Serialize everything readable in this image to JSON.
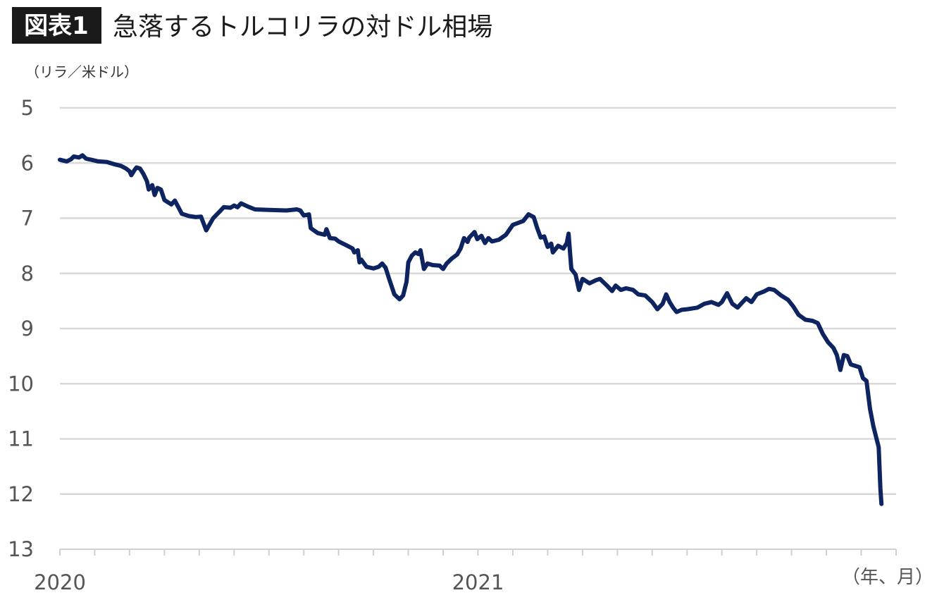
{
  "figure": {
    "badge": "図表1",
    "title": "急落するトルコリラの対ドル相場"
  },
  "chart_data": {
    "type": "line",
    "title": "急落するトルコリラの対ドル相場",
    "ylabel": "（リラ／米ドル）",
    "xlabel": "（年、月）",
    "y_inverted": true,
    "ylim": [
      5,
      13
    ],
    "y_ticks": [
      "5",
      "6",
      "7",
      "8",
      "9",
      "10",
      "11",
      "12",
      "13"
    ],
    "x_tick_labels": [
      {
        "label": "2020",
        "month": 0
      },
      {
        "label": "2021",
        "month": 12
      }
    ],
    "x_minor_ticks_every_month": true,
    "x_range_months": [
      0,
      24
    ],
    "grid": true,
    "line_color": "#0d2460",
    "series": [
      {
        "x_unit": "months since 2020-01",
        "points": [
          [
            0.0,
            5.94
          ],
          [
            0.2,
            5.97
          ],
          [
            0.32,
            5.93
          ],
          [
            0.4,
            5.88
          ],
          [
            0.55,
            5.9
          ],
          [
            0.65,
            5.86
          ],
          [
            0.75,
            5.92
          ],
          [
            0.9,
            5.94
          ],
          [
            1.1,
            5.97
          ],
          [
            1.35,
            5.98
          ],
          [
            1.55,
            6.02
          ],
          [
            1.75,
            6.05
          ],
          [
            1.9,
            6.1
          ],
          [
            2.0,
            6.15
          ],
          [
            2.05,
            6.22
          ],
          [
            2.15,
            6.12
          ],
          [
            2.2,
            6.08
          ],
          [
            2.3,
            6.1
          ],
          [
            2.4,
            6.2
          ],
          [
            2.5,
            6.33
          ],
          [
            2.55,
            6.48
          ],
          [
            2.65,
            6.4
          ],
          [
            2.72,
            6.58
          ],
          [
            2.8,
            6.45
          ],
          [
            2.9,
            6.48
          ],
          [
            3.0,
            6.67
          ],
          [
            3.2,
            6.75
          ],
          [
            3.3,
            6.68
          ],
          [
            3.4,
            6.8
          ],
          [
            3.5,
            6.92
          ],
          [
            3.7,
            6.96
          ],
          [
            3.9,
            6.98
          ],
          [
            4.05,
            6.97
          ],
          [
            4.2,
            7.22
          ],
          [
            4.4,
            7.0
          ],
          [
            4.6,
            6.87
          ],
          [
            4.7,
            6.8
          ],
          [
            4.9,
            6.81
          ],
          [
            5.0,
            6.77
          ],
          [
            5.1,
            6.8
          ],
          [
            5.2,
            6.73
          ],
          [
            5.4,
            6.79
          ],
          [
            5.6,
            6.84
          ],
          [
            6.0,
            6.85
          ],
          [
            6.5,
            6.86
          ],
          [
            6.8,
            6.84
          ],
          [
            6.9,
            6.86
          ],
          [
            7.0,
            6.95
          ],
          [
            7.15,
            6.93
          ],
          [
            7.2,
            7.18
          ],
          [
            7.4,
            7.27
          ],
          [
            7.6,
            7.3
          ],
          [
            7.65,
            7.2
          ],
          [
            7.75,
            7.36
          ],
          [
            7.9,
            7.37
          ],
          [
            8.0,
            7.42
          ],
          [
            8.25,
            7.5
          ],
          [
            8.4,
            7.55
          ],
          [
            8.45,
            7.62
          ],
          [
            8.55,
            7.58
          ],
          [
            8.6,
            7.8
          ],
          [
            8.65,
            7.75
          ],
          [
            8.8,
            7.88
          ],
          [
            9.0,
            7.91
          ],
          [
            9.15,
            7.88
          ],
          [
            9.25,
            7.82
          ],
          [
            9.35,
            7.9
          ],
          [
            9.45,
            8.1
          ],
          [
            9.6,
            8.38
          ],
          [
            9.75,
            8.47
          ],
          [
            9.85,
            8.4
          ],
          [
            9.95,
            8.15
          ],
          [
            10.0,
            7.8
          ],
          [
            10.1,
            7.68
          ],
          [
            10.2,
            7.62
          ],
          [
            10.3,
            7.65
          ],
          [
            10.35,
            7.58
          ],
          [
            10.45,
            7.92
          ],
          [
            10.55,
            7.82
          ],
          [
            10.7,
            7.85
          ],
          [
            10.9,
            7.86
          ],
          [
            11.0,
            7.92
          ],
          [
            11.1,
            7.82
          ],
          [
            11.25,
            7.73
          ],
          [
            11.4,
            7.66
          ],
          [
            11.5,
            7.55
          ],
          [
            11.6,
            7.36
          ],
          [
            11.7,
            7.43
          ],
          [
            11.75,
            7.35
          ],
          [
            11.9,
            7.25
          ],
          [
            11.98,
            7.38
          ],
          [
            12.1,
            7.32
          ],
          [
            12.2,
            7.45
          ],
          [
            12.3,
            7.36
          ],
          [
            12.4,
            7.42
          ],
          [
            12.6,
            7.39
          ],
          [
            12.8,
            7.3
          ],
          [
            13.0,
            7.12
          ],
          [
            13.3,
            7.05
          ],
          [
            13.45,
            6.93
          ],
          [
            13.6,
            6.98
          ],
          [
            13.7,
            7.18
          ],
          [
            13.8,
            7.35
          ],
          [
            13.9,
            7.33
          ],
          [
            14.0,
            7.52
          ],
          [
            14.1,
            7.46
          ],
          [
            14.15,
            7.62
          ],
          [
            14.3,
            7.5
          ],
          [
            14.45,
            7.55
          ],
          [
            14.55,
            7.45
          ],
          [
            14.6,
            7.28
          ],
          [
            14.68,
            7.92
          ],
          [
            14.8,
            8.02
          ],
          [
            14.9,
            8.3
          ],
          [
            15.0,
            8.1
          ],
          [
            15.2,
            8.18
          ],
          [
            15.4,
            8.12
          ],
          [
            15.5,
            8.1
          ],
          [
            15.7,
            8.22
          ],
          [
            15.85,
            8.32
          ],
          [
            15.95,
            8.22
          ],
          [
            16.1,
            8.3
          ],
          [
            16.25,
            8.27
          ],
          [
            16.45,
            8.3
          ],
          [
            16.6,
            8.38
          ],
          [
            16.8,
            8.4
          ],
          [
            17.0,
            8.52
          ],
          [
            17.15,
            8.65
          ],
          [
            17.3,
            8.55
          ],
          [
            17.4,
            8.38
          ],
          [
            17.5,
            8.52
          ],
          [
            17.6,
            8.62
          ],
          [
            17.7,
            8.7
          ],
          [
            17.85,
            8.66
          ],
          [
            18.0,
            8.65
          ],
          [
            18.3,
            8.62
          ],
          [
            18.5,
            8.55
          ],
          [
            18.7,
            8.52
          ],
          [
            18.9,
            8.57
          ],
          [
            19.0,
            8.52
          ],
          [
            19.15,
            8.36
          ],
          [
            19.3,
            8.55
          ],
          [
            19.45,
            8.62
          ],
          [
            19.55,
            8.55
          ],
          [
            19.7,
            8.45
          ],
          [
            19.85,
            8.52
          ],
          [
            20.0,
            8.38
          ],
          [
            20.2,
            8.33
          ],
          [
            20.35,
            8.28
          ],
          [
            20.5,
            8.3
          ],
          [
            20.7,
            8.4
          ],
          [
            20.9,
            8.48
          ],
          [
            21.05,
            8.6
          ],
          [
            21.2,
            8.75
          ],
          [
            21.4,
            8.84
          ],
          [
            21.6,
            8.86
          ],
          [
            21.75,
            8.9
          ],
          [
            21.9,
            9.1
          ],
          [
            22.05,
            9.25
          ],
          [
            22.2,
            9.35
          ],
          [
            22.3,
            9.48
          ],
          [
            22.4,
            9.75
          ],
          [
            22.5,
            9.48
          ],
          [
            22.6,
            9.5
          ],
          [
            22.7,
            9.65
          ],
          [
            22.85,
            9.68
          ],
          [
            22.95,
            9.7
          ],
          [
            23.05,
            9.9
          ],
          [
            23.15,
            9.95
          ],
          [
            23.25,
            10.45
          ],
          [
            23.35,
            10.78
          ],
          [
            23.5,
            11.15
          ],
          [
            23.55,
            11.9
          ],
          [
            23.58,
            12.18
          ]
        ]
      }
    ]
  }
}
